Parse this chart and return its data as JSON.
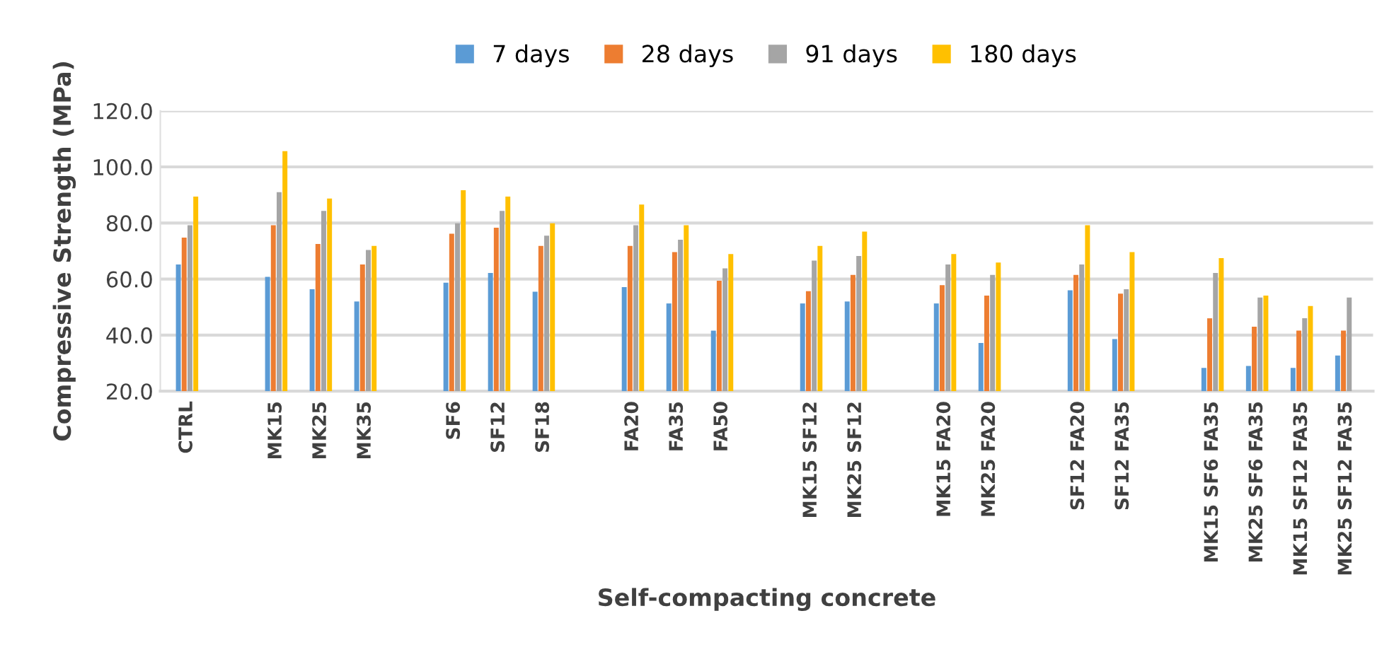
{
  "chart_data": {
    "type": "bar",
    "xlabel": "Self-compacting concrete",
    "ylabel": "Compressive Strength (MPa)",
    "categories": [
      "CTRL",
      null,
      "MK15",
      "MK25",
      "MK35",
      null,
      "SF6",
      "SF12",
      "SF18",
      null,
      "FA20",
      "FA35",
      "FA50",
      null,
      "MK15 SF12",
      "MK25 SF12",
      null,
      "MK15 FA20",
      "MK25 FA20",
      null,
      "SF12 FA20",
      "SF12 FA35",
      null,
      "MK15 SF6 FA35",
      "MK25 SF6 FA35",
      "MK15 SF12 FA35",
      "MK25 SF12 FA35"
    ],
    "series": [
      {
        "name": "7 days",
        "color": "#5b9bd5",
        "values": [
          65.2,
          null,
          60.8,
          56.4,
          52.0,
          null,
          58.7,
          62.2,
          55.5,
          null,
          57.1,
          51.3,
          41.6,
          null,
          51.3,
          52.0,
          null,
          51.3,
          37.2,
          null,
          56.0,
          38.6,
          null,
          28.3,
          29.0,
          28.3,
          32.7
        ]
      },
      {
        "name": "28 days",
        "color": "#ed7d31",
        "values": [
          74.8,
          null,
          79.2,
          72.5,
          65.2,
          null,
          76.2,
          78.3,
          71.8,
          null,
          71.8,
          69.6,
          59.4,
          null,
          55.7,
          61.5,
          null,
          57.8,
          54.1,
          null,
          61.5,
          54.8,
          null,
          46.0,
          43.0,
          41.6,
          41.6
        ]
      },
      {
        "name": "91 days",
        "color": "#a5a5a5",
        "values": [
          79.2,
          null,
          91.0,
          84.3,
          70.4,
          null,
          79.9,
          84.3,
          75.5,
          null,
          79.2,
          74.0,
          63.8,
          null,
          66.6,
          68.2,
          null,
          65.2,
          61.5,
          null,
          65.2,
          56.4,
          null,
          62.2,
          53.4,
          46.0,
          53.4
        ]
      },
      {
        "name": "180 days",
        "color": "#ffc000",
        "values": [
          89.4,
          null,
          105.6,
          88.7,
          71.8,
          null,
          91.7,
          89.4,
          79.9,
          null,
          86.6,
          79.2,
          68.9,
          null,
          71.8,
          76.9,
          null,
          68.9,
          65.9,
          null,
          79.2,
          69.6,
          null,
          67.5,
          54.1,
          50.4,
          null
        ]
      }
    ],
    "ylim": [
      20,
      120
    ],
    "yticks": [
      {
        "value": 20,
        "label": "20.0"
      },
      {
        "value": 40,
        "label": "40.0"
      },
      {
        "value": 60,
        "label": "60.0"
      },
      {
        "value": 80,
        "label": "80.0"
      },
      {
        "value": 100,
        "label": "100.0"
      },
      {
        "value": 120,
        "label": "120.0"
      }
    ],
    "grid": "y",
    "legend": "top"
  }
}
